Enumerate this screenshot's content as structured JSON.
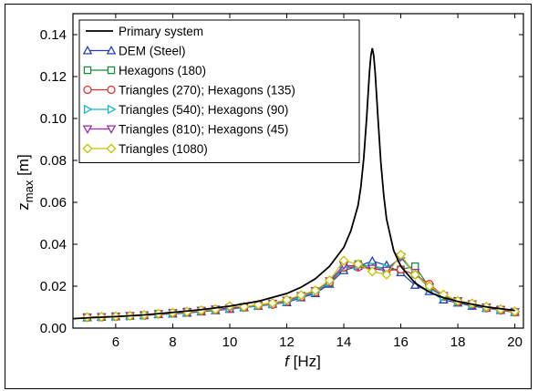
{
  "chart_data": {
    "type": "line",
    "xlabel": {
      "var": "f",
      "unit": " [Hz]"
    },
    "ylabel": {
      "var": "z",
      "sub": "max",
      "unit": " [m]"
    },
    "xlim": [
      4.5,
      20.3
    ],
    "ylim": [
      0,
      0.15
    ],
    "xticks": [
      6,
      8,
      10,
      12,
      14,
      16,
      18,
      20
    ],
    "xtick_labels": [
      "6",
      "8",
      "10",
      "12",
      "14",
      "16",
      "18",
      "20"
    ],
    "yticks": [
      0,
      0.02,
      0.04,
      0.06,
      0.08,
      0.1,
      0.12,
      0.14
    ],
    "ytick_labels": [
      "0.00",
      "0.02",
      "0.04",
      "0.06",
      "0.08",
      "0.10",
      "0.12",
      "0.14"
    ],
    "grid": false,
    "legend_position": "top-left",
    "series": [
      {
        "name": "Primary system",
        "color": "#000000",
        "marker": "none",
        "x": [
          4.5,
          5,
          6,
          7,
          8,
          9,
          10,
          11,
          12,
          12.5,
          13,
          13.5,
          14,
          14.25,
          14.5,
          14.6,
          14.7,
          14.8,
          14.9,
          14.95,
          15,
          15.05,
          15.1,
          15.2,
          15.3,
          15.4,
          15.5,
          15.75,
          16,
          16.5,
          17,
          17.5,
          18,
          19,
          20
        ],
        "values": [
          0.0045,
          0.0049,
          0.0055,
          0.0063,
          0.0075,
          0.0088,
          0.0105,
          0.0128,
          0.0165,
          0.0195,
          0.0235,
          0.0295,
          0.0385,
          0.0465,
          0.0585,
          0.0675,
          0.081,
          0.1,
          0.122,
          0.13,
          0.1335,
          0.13,
          0.122,
          0.1,
          0.079,
          0.0635,
          0.052,
          0.037,
          0.0295,
          0.0215,
          0.0172,
          0.0145,
          0.0127,
          0.0101,
          0.0084
        ]
      },
      {
        "name": "DEM (Steel)",
        "color": "#1f3fbf",
        "marker": "triangle-up",
        "x": [
          5,
          5.5,
          6,
          6.5,
          7,
          7.5,
          8,
          8.5,
          9,
          9.5,
          10,
          10.5,
          11,
          11.5,
          12,
          12.5,
          13,
          13.5,
          14,
          14.5,
          15,
          15.5,
          16,
          16.5,
          17,
          17.5,
          18,
          18.5,
          19,
          19.5,
          20
        ],
        "values": [
          0.005,
          0.0052,
          0.0055,
          0.0058,
          0.006,
          0.0065,
          0.0068,
          0.0072,
          0.0078,
          0.0084,
          0.009,
          0.0098,
          0.0105,
          0.0114,
          0.0122,
          0.0145,
          0.0165,
          0.021,
          0.0275,
          0.0295,
          0.032,
          0.03,
          0.0265,
          0.0205,
          0.0175,
          0.0135,
          0.012,
          0.0105,
          0.0095,
          0.0085,
          0.0075
        ]
      },
      {
        "name": "Hexagons (180)",
        "color": "#1b8a3a",
        "marker": "square",
        "x": [
          5,
          5.5,
          6,
          6.5,
          7,
          7.5,
          8,
          8.5,
          9,
          9.5,
          10,
          10.5,
          11,
          11.5,
          12,
          12.5,
          13,
          13.5,
          14,
          14.5,
          15,
          15.5,
          16,
          16.5,
          17,
          17.5,
          18,
          18.5,
          19,
          19.5,
          20
        ],
        "values": [
          0.0052,
          0.0053,
          0.0056,
          0.0058,
          0.0062,
          0.0068,
          0.0072,
          0.0078,
          0.0082,
          0.0088,
          0.0095,
          0.01,
          0.0108,
          0.0116,
          0.0128,
          0.015,
          0.0172,
          0.0215,
          0.0288,
          0.0305,
          0.0292,
          0.0282,
          0.028,
          0.0295,
          0.0195,
          0.015,
          0.0128,
          0.0112,
          0.0098,
          0.0088,
          0.0078
        ]
      },
      {
        "name": "Triangles (270); Hexagons (135)",
        "color": "#e03030",
        "marker": "circle",
        "x": [
          5,
          5.5,
          6,
          6.5,
          7,
          7.5,
          8,
          8.5,
          9,
          9.5,
          10,
          10.5,
          11,
          11.5,
          12,
          12.5,
          13,
          13.5,
          14,
          14.5,
          15,
          15.5,
          16,
          16.5,
          17,
          17.5,
          18,
          18.5,
          19,
          19.5,
          20
        ],
        "values": [
          0.005,
          0.0052,
          0.0054,
          0.0058,
          0.006,
          0.0066,
          0.007,
          0.0075,
          0.008,
          0.0086,
          0.0092,
          0.0098,
          0.0106,
          0.0112,
          0.0125,
          0.0148,
          0.017,
          0.0218,
          0.029,
          0.029,
          0.0283,
          0.0275,
          0.028,
          0.0255,
          0.021,
          0.0155,
          0.0125,
          0.0112,
          0.0095,
          0.0085,
          0.0075
        ]
      },
      {
        "name": "Triangles (540); Hexagons (90)",
        "color": "#17b8c8",
        "marker": "triangle-right",
        "x": [
          5,
          5.5,
          6,
          6.5,
          7,
          7.5,
          8,
          8.5,
          9,
          9.5,
          10,
          10.5,
          11,
          11.5,
          12,
          12.5,
          13,
          13.5,
          14,
          14.5,
          15,
          15.5,
          16,
          16.5,
          17,
          17.5,
          18,
          18.5,
          19,
          19.5,
          20
        ],
        "values": [
          0.0051,
          0.0053,
          0.0055,
          0.0057,
          0.0061,
          0.0067,
          0.0071,
          0.0077,
          0.0082,
          0.0087,
          0.0094,
          0.0099,
          0.0107,
          0.0115,
          0.0126,
          0.015,
          0.0172,
          0.022,
          0.0295,
          0.0295,
          0.0295,
          0.0285,
          0.0335,
          0.026,
          0.019,
          0.015,
          0.0128,
          0.0112,
          0.0097,
          0.0087,
          0.0077
        ]
      },
      {
        "name": "Triangles (810); Hexagons (45)",
        "color": "#9a2aa8",
        "marker": "triangle-down",
        "x": [
          5,
          5.5,
          6,
          6.5,
          7,
          7.5,
          8,
          8.5,
          9,
          9.5,
          10,
          10.5,
          11,
          11.5,
          12,
          12.5,
          13,
          13.5,
          14,
          14.5,
          15,
          15.5,
          16,
          16.5,
          17,
          17.5,
          18,
          18.5,
          19,
          19.5,
          20
        ],
        "values": [
          0.0052,
          0.0054,
          0.0056,
          0.0059,
          0.0062,
          0.0068,
          0.0073,
          0.0078,
          0.0084,
          0.009,
          0.0096,
          0.0101,
          0.011,
          0.0118,
          0.0132,
          0.0155,
          0.0178,
          0.0225,
          0.03,
          0.0295,
          0.0285,
          0.0275,
          0.034,
          0.0265,
          0.0195,
          0.0155,
          0.013,
          0.0115,
          0.01,
          0.0088,
          0.0078
        ]
      },
      {
        "name": "Triangles (1080)",
        "color": "#c8c000",
        "marker": "diamond",
        "x": [
          5,
          5.5,
          6,
          6.5,
          7,
          7.5,
          8,
          8.5,
          9,
          9.5,
          10,
          10.5,
          11,
          11.5,
          12,
          12.5,
          13,
          13.5,
          14,
          14.5,
          15,
          15.5,
          16,
          16.5,
          17,
          17.5,
          18,
          18.5,
          19,
          19.5,
          20
        ],
        "values": [
          0.0052,
          0.0054,
          0.0056,
          0.0059,
          0.0063,
          0.0069,
          0.0074,
          0.0078,
          0.0085,
          0.009,
          0.0105,
          0.0102,
          0.0112,
          0.012,
          0.0135,
          0.0158,
          0.018,
          0.0228,
          0.0322,
          0.0305,
          0.027,
          0.0255,
          0.035,
          0.0255,
          0.02,
          0.016,
          0.013,
          0.0118,
          0.0102,
          0.009,
          0.008
        ]
      }
    ]
  }
}
